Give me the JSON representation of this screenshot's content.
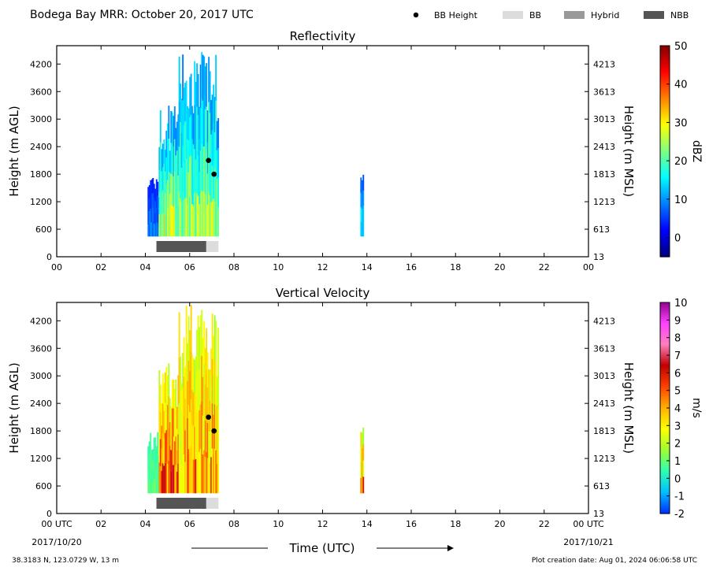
{
  "header": {
    "title": "Bodega Bay MRR:  October 20, 2017 UTC",
    "legend": [
      {
        "label": "BB Height",
        "kind": "dot",
        "color": "#000000"
      },
      {
        "label": "BB",
        "kind": "swatch",
        "color": "#dcdcdc"
      },
      {
        "label": "Hybrid",
        "kind": "swatch",
        "color": "#999999"
      },
      {
        "label": "NBB",
        "kind": "swatch",
        "color": "#555555"
      }
    ]
  },
  "footer": {
    "location": "38.3183 N, 123.0729 W, 13 m",
    "creation": "Plot creation date: Aug 01, 2024 06:06:58 UTC",
    "xlabel": "Time (UTC)",
    "start_date": "2017/10/20",
    "end_date": "2017/10/21"
  },
  "chart_data": [
    {
      "type": "heatmap",
      "title": "Reflectivity",
      "ylabel": "Height (m AGL)",
      "y2label": "Height (m MSL)",
      "xlim": [
        0,
        24
      ],
      "ylim": [
        0,
        4600
      ],
      "x_ticks": [
        "00",
        "02",
        "04",
        "06",
        "08",
        "10",
        "12",
        "14",
        "16",
        "18",
        "20",
        "22",
        "00"
      ],
      "y_ticks": [
        0,
        600,
        1200,
        1800,
        2400,
        3000,
        3600,
        4200
      ],
      "y2_ticks": [
        13,
        613,
        1213,
        1813,
        2413,
        3013,
        3613,
        4213
      ],
      "colorbar": {
        "label": "dBZ",
        "min": -5,
        "max": 50,
        "ticks": [
          0,
          10,
          20,
          30,
          40,
          50
        ],
        "colormap": [
          "#00007f",
          "#0000ff",
          "#0080ff",
          "#00ffff",
          "#80ff80",
          "#ffff00",
          "#ff8000",
          "#ff0000",
          "#7f0000"
        ]
      },
      "bb_height_points": [
        {
          "x": 6.85,
          "y": 2100
        },
        {
          "x": 7.1,
          "y": 1800
        }
      ],
      "bb_bar": [
        {
          "start": 4.5,
          "end": 6.75,
          "class": "NBB"
        },
        {
          "start": 6.75,
          "end": 7.3,
          "class": "BB"
        }
      ],
      "precip_segments": [
        {
          "start": 4.1,
          "end": 4.6,
          "bottom": 450,
          "top": 1800,
          "peak_value": 10
        },
        {
          "start": 4.6,
          "end": 5.5,
          "bottom": 450,
          "top": 3300,
          "peak_value": 30
        },
        {
          "start": 5.5,
          "end": 7.3,
          "bottom": 450,
          "top": 4550,
          "peak_value": 28
        },
        {
          "start": 13.7,
          "end": 13.85,
          "bottom": 450,
          "top": 1950,
          "peak_value": 18
        }
      ]
    },
    {
      "type": "heatmap",
      "title": "Vertical Velocity",
      "ylabel": "Height (m AGL)",
      "y2label": "Height (m MSL)",
      "xlim": [
        0,
        24
      ],
      "ylim": [
        0,
        4600
      ],
      "x_ticks": [
        "00 UTC",
        "02",
        "04",
        "06",
        "08",
        "10",
        "12",
        "14",
        "16",
        "18",
        "20",
        "22",
        "00 UTC"
      ],
      "y_ticks": [
        0,
        600,
        1200,
        1800,
        2400,
        3000,
        3600,
        4200
      ],
      "y2_ticks": [
        13,
        613,
        1213,
        1813,
        2413,
        3013,
        3613,
        4213
      ],
      "colorbar": {
        "label": "m/s",
        "min": -2,
        "max": 10,
        "ticks": [
          -2,
          -1,
          0,
          1,
          2,
          3,
          4,
          5,
          6,
          7,
          8,
          9,
          10
        ],
        "colormap": [
          "#0030ff",
          "#00c0ff",
          "#30ffb0",
          "#a0ff30",
          "#ffff00",
          "#ffb000",
          "#ff4000",
          "#c00000",
          "#ff80c0",
          "#ff40ff",
          "#900090"
        ]
      },
      "bb_height_points": [
        {
          "x": 6.85,
          "y": 2100
        },
        {
          "x": 7.1,
          "y": 1800
        }
      ],
      "bb_bar": [
        {
          "start": 4.5,
          "end": 6.75,
          "class": "NBB"
        },
        {
          "start": 6.75,
          "end": 7.3,
          "class": "BB"
        }
      ],
      "precip_segments": [
        {
          "start": 4.1,
          "end": 4.6,
          "bottom": 450,
          "top": 1800,
          "peak_value": 1
        },
        {
          "start": 4.6,
          "end": 5.5,
          "bottom": 450,
          "top": 3300,
          "peak_value": 6
        },
        {
          "start": 5.5,
          "end": 7.3,
          "bottom": 450,
          "top": 4550,
          "peak_value": 5
        },
        {
          "start": 13.7,
          "end": 13.85,
          "bottom": 450,
          "top": 1950,
          "peak_value": 5
        }
      ]
    }
  ]
}
